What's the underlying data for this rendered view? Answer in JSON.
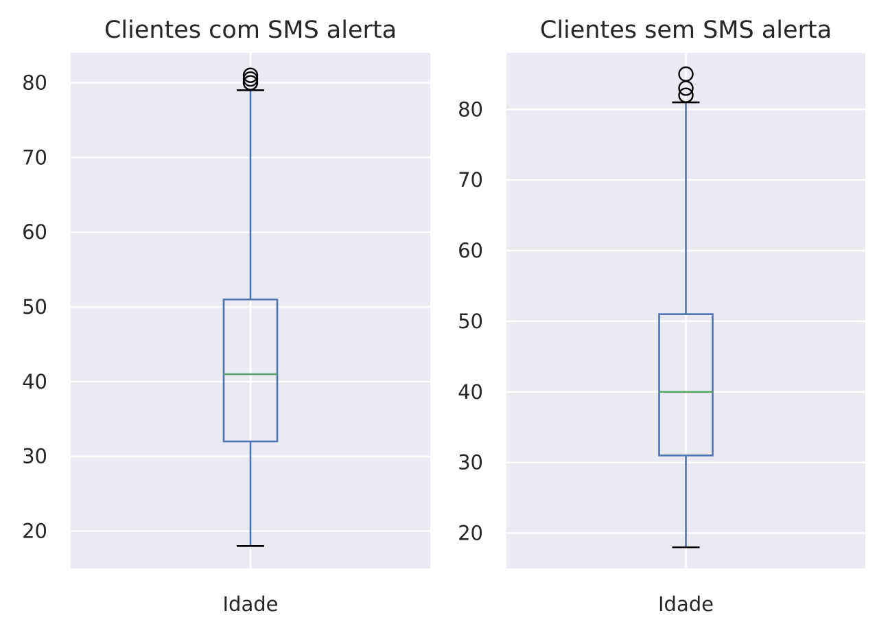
{
  "chart_data": [
    {
      "type": "box",
      "title": "Clientes com SMS alerta",
      "categories": [
        "Idade"
      ],
      "ylim": [
        15,
        84
      ],
      "yticks": [
        20,
        30,
        40,
        50,
        60,
        70,
        80
      ],
      "grid": true,
      "box": {
        "whisker_low": 18,
        "q1": 32,
        "median": 41,
        "q3": 51,
        "whisker_high": 79
      },
      "fliers": [
        80,
        80.5,
        81
      ]
    },
    {
      "type": "box",
      "title": "Clientes sem SMS alerta",
      "categories": [
        "Idade"
      ],
      "ylim": [
        15,
        88
      ],
      "yticks": [
        20,
        30,
        40,
        50,
        60,
        70,
        80
      ],
      "grid": true,
      "box": {
        "whisker_low": 18,
        "q1": 31,
        "median": 40,
        "q3": 51,
        "whisker_high": 81
      },
      "fliers": [
        82,
        83,
        85
      ]
    }
  ],
  "colors": {
    "background": "#eaeaf2",
    "grid": "#ffffff",
    "box": "#4c72b0",
    "median": "#55a868",
    "caps_and_fliers": "#000000"
  }
}
